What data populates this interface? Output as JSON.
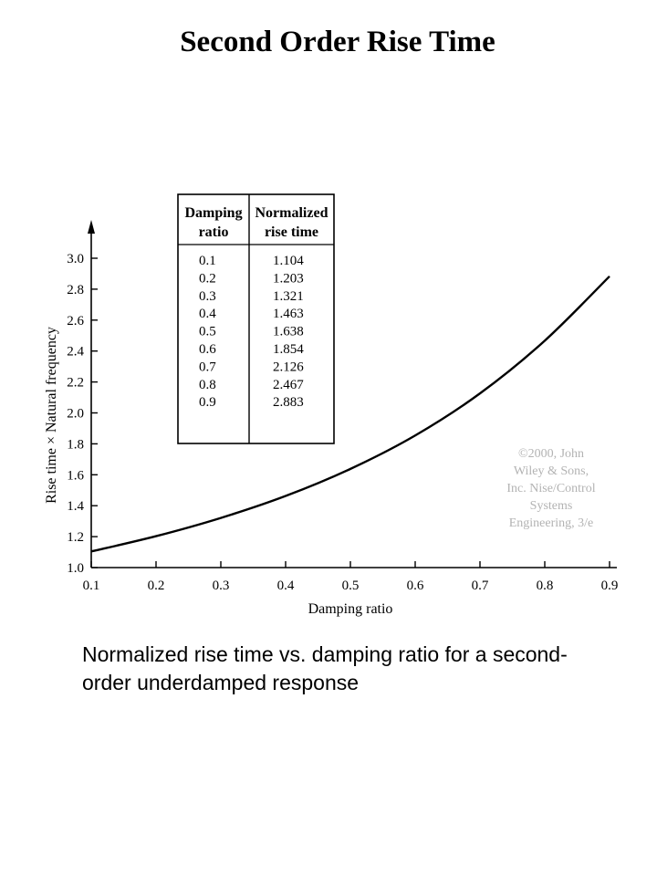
{
  "title": "Second Order Rise Time",
  "caption": "Normalized rise time vs. damping ratio for a second-order underdamped response",
  "copyright": "©2000, John Wiley & Sons, Inc. Nise/Control Systems Engineering, 3/e",
  "chart_data": {
    "type": "line",
    "xlabel": "Damping ratio",
    "ylabel": "Rise time × Natural frequency",
    "xlim": [
      0.1,
      0.9
    ],
    "ylim": [
      1.0,
      3.0
    ],
    "x_ticks": [
      "0.1",
      "0.2",
      "0.3",
      "0.4",
      "0.5",
      "0.6",
      "0.7",
      "0.8",
      "0.9"
    ],
    "y_ticks": [
      "1.0",
      "1.2",
      "1.4",
      "1.6",
      "1.8",
      "2.0",
      "2.2",
      "2.4",
      "2.6",
      "2.8",
      "3.0"
    ],
    "x": [
      0.1,
      0.2,
      0.3,
      0.4,
      0.5,
      0.6,
      0.7,
      0.8,
      0.9
    ],
    "series": [
      {
        "values": [
          1.104,
          1.203,
          1.321,
          1.463,
          1.638,
          1.854,
          2.126,
          2.467,
          2.883
        ]
      }
    ],
    "table": {
      "headers": [
        "Damping ratio",
        "Normalized rise time"
      ],
      "rows": [
        [
          "0.1",
          "1.104"
        ],
        [
          "0.2",
          "1.203"
        ],
        [
          "0.3",
          "1.321"
        ],
        [
          "0.4",
          "1.463"
        ],
        [
          "0.5",
          "1.638"
        ],
        [
          "0.6",
          "1.854"
        ],
        [
          "0.7",
          "2.126"
        ],
        [
          "0.8",
          "2.467"
        ],
        [
          "0.9",
          "2.883"
        ]
      ]
    },
    "grid": false
  }
}
